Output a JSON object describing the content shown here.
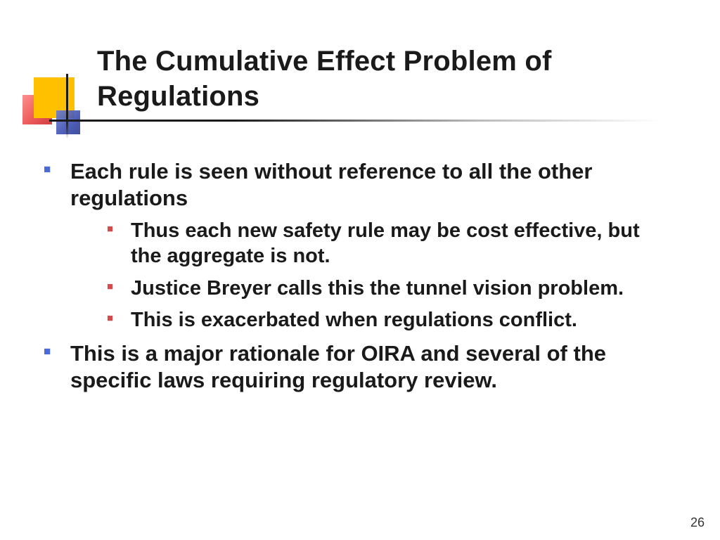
{
  "slide": {
    "title": "The Cumulative Effect Problem of Regulations",
    "page_number": "26",
    "bullets": {
      "b1": "Each rule is seen without reference to all the other regulations",
      "b1_1": "Thus each new safety rule may be cost effective, but the aggregate is not.",
      "b1_2": "Justice Breyer calls this the tunnel vision problem.",
      "b1_3": "This is exacerbated when regulations conflict.",
      "b2": "This is a major rationale for OIRA and several of the specific laws requiring regulatory review."
    }
  },
  "style": {
    "background_color": "#ffffff",
    "text_color": "#1a1a1a",
    "title_fontsize": 40,
    "body_fontsize_l1": 31,
    "body_fontsize_l2": 29,
    "bullet_color_l1": "#4a6ad6",
    "bullet_color_l2": "#d64a4a",
    "deco_colors": {
      "yellow": "#ffc000",
      "red": "#e83a3a",
      "blue": "#3b4db0"
    },
    "font_family": "Arial"
  }
}
